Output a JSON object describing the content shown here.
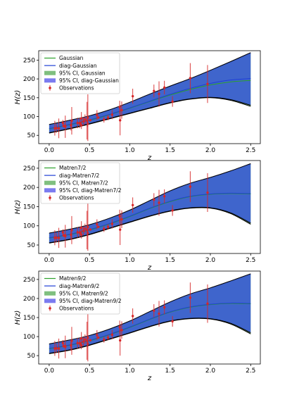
{
  "observations": {
    "z": [
      0.07,
      0.09,
      0.12,
      0.17,
      0.179,
      0.199,
      0.2,
      0.27,
      0.28,
      0.352,
      0.38,
      0.3802,
      0.4,
      0.4004,
      0.4247,
      0.44497,
      0.47,
      0.4783,
      0.48,
      0.51,
      0.593,
      0.61,
      0.68,
      0.73,
      0.781,
      0.875,
      0.88,
      0.9,
      1.037,
      1.3,
      1.363,
      1.43,
      1.53,
      1.75,
      1.965
    ],
    "H": [
      69,
      69,
      68.6,
      83,
      75,
      75,
      72.9,
      77,
      88.8,
      83,
      81.5,
      83,
      95,
      77,
      87.1,
      92.8,
      89,
      80.9,
      97,
      90.4,
      104,
      97.3,
      92,
      97.3,
      105,
      125,
      90,
      117,
      154,
      168,
      160,
      177,
      140,
      202,
      186.5
    ],
    "err": [
      19.6,
      12,
      26.2,
      8,
      4,
      5,
      29.6,
      14,
      36.6,
      14,
      1.9,
      13.5,
      17,
      10.2,
      11.2,
      12.9,
      50,
      9,
      62,
      1.9,
      13,
      2.1,
      8,
      7,
      12,
      17,
      40,
      23,
      20,
      17,
      33.6,
      18,
      14,
      40,
      50.4
    ]
  },
  "chart_data": [
    {
      "type": "line",
      "xlabel": "z",
      "ylabel": "H(z)",
      "xlim": [
        -0.13,
        2.62
      ],
      "ylim": [
        28,
        275
      ],
      "xticks": [
        "0.0",
        "0.5",
        "1.0",
        "1.5",
        "2.0",
        "2.5"
      ],
      "yticks": [
        "50",
        "100",
        "150",
        "200",
        "250"
      ],
      "legend_position": "upper-left",
      "z": [
        0,
        0.25,
        0.5,
        0.75,
        1.0,
        1.25,
        1.5,
        1.75,
        2.0,
        2.25,
        2.5
      ],
      "series": [
        {
          "name": "Gaussian",
          "values": [
            67,
            78,
            90,
            105,
            122,
            140,
            157,
            172,
            184,
            192,
            196
          ]
        },
        {
          "name": "diag-Gaussian",
          "values": [
            68,
            79,
            91,
            106,
            123,
            141,
            159,
            175,
            188,
            197,
            201
          ]
        }
      ],
      "bands": [
        {
          "name": "95% CI, Gaussian",
          "lower": [
            56,
            67,
            80,
            94,
            108,
            122,
            136,
            146,
            150,
            143,
            127
          ],
          "upper": [
            78,
            89,
            101,
            117,
            137,
            159,
            180,
            200,
            222,
            245,
            268
          ]
        },
        {
          "name": "95% CI, diag-Gaussian",
          "lower": [
            57,
            68,
            81,
            95,
            109,
            123,
            137,
            147,
            151,
            145,
            130
          ],
          "upper": [
            79,
            90,
            102,
            118,
            138,
            160,
            181,
            201,
            223,
            246,
            270
          ]
        }
      ],
      "observations_label": "Observations"
    },
    {
      "type": "line",
      "xlabel": "z",
      "ylabel": "H(z)",
      "xlim": [
        -0.13,
        2.62
      ],
      "ylim": [
        28,
        270
      ],
      "xticks": [
        "0.0",
        "0.5",
        "1.0",
        "1.5",
        "2.0",
        "2.5"
      ],
      "yticks": [
        "50",
        "100",
        "150",
        "200",
        "250"
      ],
      "legend_position": "upper-left",
      "z": [
        0,
        0.25,
        0.5,
        0.75,
        1.0,
        1.25,
        1.5,
        1.75,
        2.0,
        2.25,
        2.5
      ],
      "series": [
        {
          "name": "Matren7/2",
          "values": [
            68,
            77,
            89,
            105,
            124,
            145,
            163,
            176,
            182,
            184,
            183
          ]
        },
        {
          "name": "diag-Matren7/2",
          "values": [
            69,
            78,
            90,
            106,
            125,
            146,
            164,
            177,
            183,
            185,
            184
          ]
        }
      ],
      "bands": [
        {
          "name": "95% CI, Matren7/2",
          "lower": [
            55,
            64,
            77,
            93,
            109,
            125,
            138,
            146,
            146,
            132,
            104
          ],
          "upper": [
            80,
            90,
            102,
            119,
            140,
            165,
            190,
            210,
            225,
            242,
            260
          ]
        },
        {
          "name": "95% CI, diag-Matren7/2",
          "lower": [
            56,
            65,
            78,
            94,
            110,
            126,
            139,
            147,
            147,
            134,
            107
          ],
          "upper": [
            81,
            91,
            103,
            120,
            141,
            166,
            191,
            211,
            226,
            243,
            262
          ]
        }
      ],
      "observations_label": "Observations"
    },
    {
      "type": "line",
      "xlabel": "z",
      "ylabel": "H(z)",
      "xlim": [
        -0.13,
        2.62
      ],
      "ylim": [
        28,
        272
      ],
      "xticks": [
        "0.0",
        "0.5",
        "1.0",
        "1.5",
        "2.0",
        "2.5"
      ],
      "yticks": [
        "50",
        "100",
        "150",
        "200",
        "250"
      ],
      "legend_position": "upper-left",
      "z": [
        0,
        0.25,
        0.5,
        0.75,
        1.0,
        1.25,
        1.5,
        1.75,
        2.0,
        2.25,
        2.5
      ],
      "series": [
        {
          "name": "Matren9/2",
          "values": [
            68,
            77,
            89,
            105,
            124,
            145,
            164,
            177,
            184,
            187,
            186
          ]
        },
        {
          "name": "diag-Matren9/2",
          "values": [
            69,
            78,
            90,
            106,
            125,
            146,
            165,
            178,
            185,
            188,
            187
          ]
        }
      ],
      "bands": [
        {
          "name": "95% CI, Matren9/2",
          "lower": [
            55,
            64,
            77,
            93,
            109,
            126,
            140,
            147,
            146,
            133,
            107
          ],
          "upper": [
            80,
            90,
            102,
            119,
            140,
            165,
            190,
            211,
            227,
            245,
            263
          ]
        },
        {
          "name": "95% CI, diag-Matren9/2",
          "lower": [
            56,
            65,
            78,
            94,
            110,
            127,
            141,
            148,
            147,
            135,
            110
          ],
          "upper": [
            81,
            91,
            103,
            120,
            141,
            166,
            191,
            212,
            228,
            246,
            265
          ]
        }
      ],
      "observations_label": "Observations"
    }
  ],
  "colors": {
    "primary_line": "#2ca02c",
    "diag_line": "#1f3fd6",
    "band_primary": "#7ec77e",
    "band_diag": "#3b5fd0",
    "band_edge": "#000000",
    "observations": "#d62728",
    "legend_patch_primary": "#7fbf7f",
    "legend_patch_diag": "#7b7bf0"
  }
}
